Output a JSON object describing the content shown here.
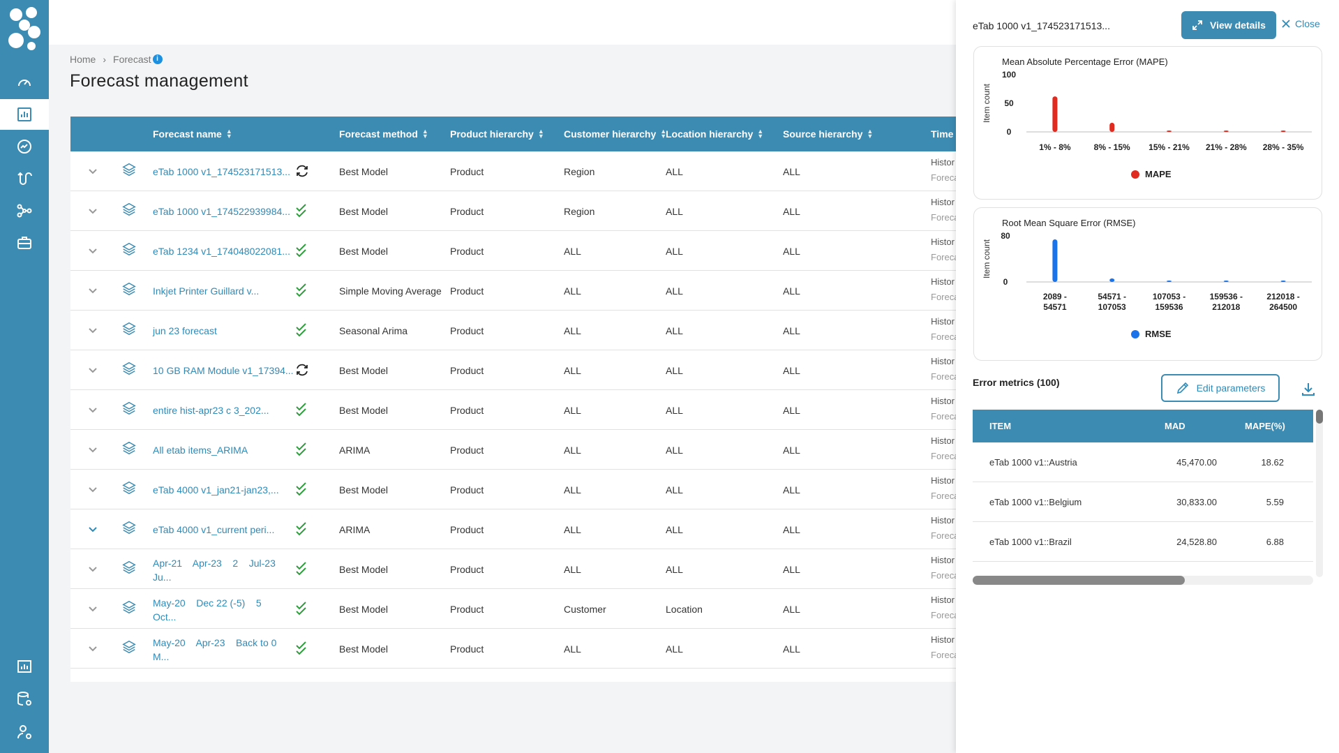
{
  "breadcrumb": {
    "home": "Home",
    "separator": "›",
    "current": "Forecast",
    "info": "i"
  },
  "page_title": "Forecast management",
  "table": {
    "headers": [
      "Forecast name",
      "Forecast method",
      "Product hierarchy",
      "Customer hierarchy",
      "Location hierarchy",
      "Source hierarchy",
      "Time p"
    ],
    "rows": [
      {
        "name": "eTab 1000 v1_174523171513...",
        "name2": "",
        "status": "sync",
        "expanded": false,
        "method": "Best Model",
        "product": "Product",
        "customer": "Region",
        "location": "ALL",
        "source": "ALL",
        "time1": "Histor",
        "time2": "Foreca"
      },
      {
        "name": "eTab 1000 v1_174522939984...",
        "name2": "",
        "status": "check",
        "expanded": false,
        "method": "Best Model",
        "product": "Product",
        "customer": "Region",
        "location": "ALL",
        "source": "ALL",
        "time1": "Histor",
        "time2": "Foreca"
      },
      {
        "name": "eTab 1234 v1_174048022081...",
        "name2": "",
        "status": "check",
        "expanded": false,
        "method": "Best Model",
        "product": "Product",
        "customer": "ALL",
        "location": "ALL",
        "source": "ALL",
        "time1": "Histor",
        "time2": "Foreca"
      },
      {
        "name": "Inkjet Printer Guillard v...",
        "name2": "",
        "status": "check",
        "expanded": false,
        "method": "Simple Moving Average",
        "product": "Product",
        "customer": "ALL",
        "location": "ALL",
        "source": "ALL",
        "time1": "Histor",
        "time2": "Foreca"
      },
      {
        "name": "jun 23 forecast",
        "name2": "",
        "status": "check",
        "expanded": false,
        "method": "Seasonal Arima",
        "product": "Product",
        "customer": "ALL",
        "location": "ALL",
        "source": "ALL",
        "time1": "Histor",
        "time2": "Foreca"
      },
      {
        "name": "10 GB RAM Module v1_17394...",
        "name2": "",
        "status": "sync",
        "expanded": false,
        "method": "Best Model",
        "product": "Product",
        "customer": "ALL",
        "location": "ALL",
        "source": "ALL",
        "time1": "Histor",
        "time2": "Foreca"
      },
      {
        "name": "entire hist-apr23 c 3_202...",
        "name2": "",
        "status": "check",
        "expanded": false,
        "method": "Best Model",
        "product": "Product",
        "customer": "ALL",
        "location": "ALL",
        "source": "ALL",
        "time1": "Histor",
        "time2": "Foreca"
      },
      {
        "name": "All etab items_ARIMA",
        "name2": "",
        "status": "check",
        "expanded": false,
        "method": "ARIMA",
        "product": "Product",
        "customer": "ALL",
        "location": "ALL",
        "source": "ALL",
        "time1": "Histor",
        "time2": "Foreca"
      },
      {
        "name": "eTab 4000 v1_jan21-jan23,...",
        "name2": "",
        "status": "check",
        "expanded": false,
        "method": "Best Model",
        "product": "Product",
        "customer": "ALL",
        "location": "ALL",
        "source": "ALL",
        "time1": "Histor",
        "time2": "Foreca"
      },
      {
        "name": "eTab 4000 v1_current peri...",
        "name2": "",
        "status": "check",
        "expanded": true,
        "method": "ARIMA",
        "product": "Product",
        "customer": "ALL",
        "location": "ALL",
        "source": "ALL",
        "time1": "Histor",
        "time2": "Foreca"
      },
      {
        "name": "Apr-21    Apr-23    2    Jul-23",
        "name2": "Ju...",
        "status": "check",
        "expanded": false,
        "method": "Best Model",
        "product": "Product",
        "customer": "ALL",
        "location": "ALL",
        "source": "ALL",
        "time1": "Histor",
        "time2": "Foreca"
      },
      {
        "name": "May-20    Dec 22 (-5)    5",
        "name2": "Oct...",
        "status": "check",
        "expanded": false,
        "method": "Best Model",
        "product": "Product",
        "customer": "Customer",
        "location": "Location",
        "source": "ALL",
        "time1": "Histor",
        "time2": "Foreca"
      },
      {
        "name": "May-20    Apr-23    Back to 0",
        "name2": "M...",
        "status": "check",
        "expanded": false,
        "method": "Best Model",
        "product": "Product",
        "customer": "ALL",
        "location": "ALL",
        "source": "ALL",
        "time1": "Histor",
        "time2": "Foreca"
      }
    ]
  },
  "panel": {
    "title": "eTab 1000 v1_174523171513...",
    "view_details": "View details",
    "close": "Close",
    "error_title": "Error metrics (100)",
    "edit_parameters": "Edit parameters",
    "columns": [
      "ITEM",
      "MAD",
      "MAPE(%)"
    ],
    "rows": [
      {
        "item": "eTab 1000 v1::Austria",
        "mad": "45,470.00",
        "mape": "18.62"
      },
      {
        "item": "eTab 1000 v1::Belgium",
        "mad": "30,833.00",
        "mape": "5.59"
      },
      {
        "item": "eTab 1000 v1::Brazil",
        "mad": "24,528.80",
        "mape": "6.88"
      }
    ]
  },
  "chart_data": [
    {
      "type": "bar",
      "title": "Mean Absolute Percentage Error (MAPE)",
      "ylabel": "Item count",
      "yticks": [
        "100",
        "50",
        "0"
      ],
      "ylim": [
        0,
        100
      ],
      "categories": [
        "1% - 8%",
        "8% - 15%",
        "15% - 21%",
        "21% - 28%",
        "28% - 35%"
      ],
      "series": [
        {
          "name": "MAPE",
          "values": [
            62,
            16,
            2,
            1,
            1
          ]
        }
      ],
      "color": "#e02b20",
      "legend": "bottom"
    },
    {
      "type": "bar",
      "title": "Root Mean Square Error (RMSE)",
      "ylabel": "Item count",
      "yticks": [
        "80",
        "0"
      ],
      "ylim": [
        0,
        80
      ],
      "categories": [
        [
          "2089 -",
          "54571"
        ],
        [
          "54571 -",
          "107053"
        ],
        [
          "107053 -",
          "159536"
        ],
        [
          "159536 -",
          "212018"
        ],
        [
          "212018 -",
          "264500"
        ]
      ],
      "series": [
        {
          "name": "RMSE",
          "values": [
            74,
            6,
            1,
            1,
            1
          ]
        }
      ],
      "color": "#1a73e8",
      "legend": "bottom"
    }
  ]
}
